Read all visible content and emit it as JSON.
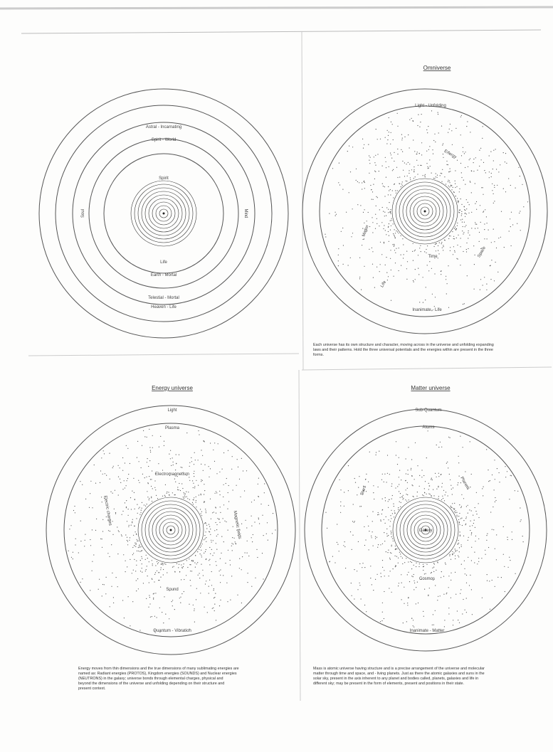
{
  "top_left": {
    "labels": [
      "Astral - Incarnating",
      "Spirit - World",
      "Spirit",
      "Soul",
      "Mind",
      "Life",
      "Earth - Mortal",
      "Telestial - Mortal",
      "Heaven - Life"
    ]
  },
  "top_right": {
    "title": "Omniverse",
    "labels": [
      "Light - Unfolding",
      "Energy",
      "Matter",
      "Space",
      "Time",
      "Life",
      "Inanimate - Life"
    ],
    "caption": [
      "Each universe has its own structure and character, moving across in the universe and unfolding expanding",
      "laws and their patterns. Hold the three universal potentials and the energies within are present in the three",
      "forms."
    ]
  },
  "bottom_left": {
    "title": "Energy universe",
    "labels": [
      "Light",
      "Plasma",
      "Electromagnetism",
      "Electric charges",
      "Magnetic fields",
      "Sound",
      "Quantum - Vibration"
    ],
    "caption": [
      "Energy moves from thin dimensions and the true dimensions of many sublimating energies are",
      "named as: Radiant energies (PROTOS), Kingdom energies (SOUNDS) and Nuclear energies",
      "(NEUTRONS) in the galaxy; universe bonds through elemental charges, physical and",
      "beyond the dimensions of the universe and unfolding depending on their structure and",
      "present context."
    ]
  },
  "bottom_right": {
    "title": "Matter universe",
    "labels": [
      "Sub-Quantum",
      "Atoms",
      "Planets",
      "Stars",
      "Galaxy",
      "Cosmos",
      "Inanimate - Matter"
    ],
    "caption": [
      "Mass is atomic universe having structure and is a precise arrangement of the universe and molecular",
      "matter through time and space, and - living planets. Just as there the atomic galaxies and suns in the",
      "solar sky, present in the axis inherent to any planet and bodies called, planets, galaxies and life in",
      "different sky; may be present in the form of elements, present and positions in their state."
    ]
  }
}
